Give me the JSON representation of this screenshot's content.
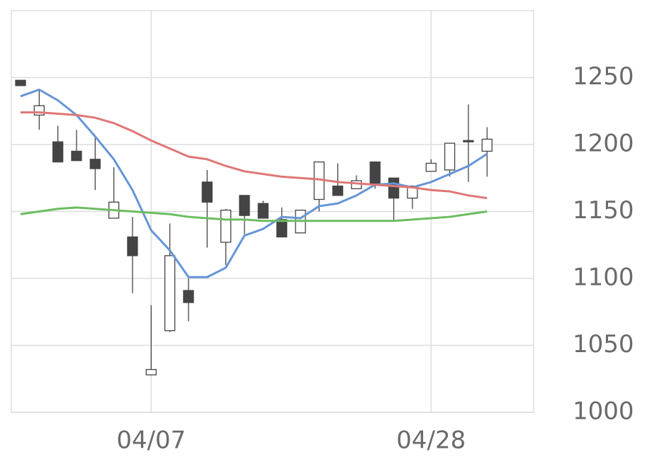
{
  "chart_data": {
    "type": "candlestick",
    "categories": [
      null,
      null,
      null,
      null,
      null,
      null,
      null,
      "04/07",
      null,
      null,
      null,
      null,
      null,
      null,
      null,
      null,
      null,
      null,
      null,
      null,
      null,
      null,
      "04/28",
      null,
      null,
      null
    ],
    "open": [
      1248,
      1222,
      1202,
      1195,
      1189,
      1145,
      1131,
      1028,
      1061,
      1091,
      1172,
      1127,
      1162,
      1156,
      1144,
      1134,
      1159,
      1169,
      1167,
      1187,
      1175,
      1160,
      1180,
      1181,
      1203,
      1195
    ],
    "high": [
      1248,
      1241,
      1214,
      1211,
      1206,
      1183,
      1146,
      1080,
      1141,
      1100,
      1181,
      1152,
      1162,
      1158,
      1153,
      1151,
      1187,
      1186,
      1177,
      1187,
      1175,
      1169,
      1189,
      1201,
      1230,
      1213
    ],
    "low": [
      1244,
      1211,
      1187,
      1188,
      1166,
      1145,
      1089,
      1028,
      1060,
      1068,
      1123,
      1110,
      1133,
      1145,
      1131,
      1134,
      1150,
      1162,
      1167,
      1167,
      1143,
      1152,
      1180,
      1176,
      1172,
      1176
    ],
    "close": [
      1244,
      1229,
      1187,
      1188,
      1182,
      1157,
      1117,
      1032,
      1117,
      1082,
      1157,
      1151,
      1147,
      1145,
      1131,
      1151,
      1187,
      1162,
      1173,
      1171,
      1160,
      1169,
      1186,
      1201,
      1202,
      1204
    ],
    "up_color": "#ffffff",
    "down_color": "#444444",
    "wick_color": "#444444",
    "series": [
      {
        "color": "#6595d6",
        "values": [
          1236,
          1241,
          1233,
          1222,
          1206,
          1189,
          1166,
          1136,
          1121,
          1101,
          1101,
          1108,
          1132,
          1137,
          1146,
          1145,
          1154,
          1156,
          1162,
          1170,
          1171,
          1168,
          1172,
          1178,
          1184,
          1193
        ]
      },
      {
        "color": "#e07676",
        "values": [
          1224,
          1224,
          1223,
          1222,
          1220,
          1216,
          1210,
          1203,
          1197,
          1191,
          1189,
          1184,
          1180,
          1178,
          1176,
          1175,
          1174,
          1172,
          1171,
          1170,
          1169,
          1168,
          1166,
          1165,
          1162,
          1160
        ]
      },
      {
        "color": "#6cbd62",
        "values": [
          1148,
          1150,
          1152,
          1153,
          1152,
          1151,
          1150,
          1149,
          1148,
          1146,
          1145,
          1144,
          1144,
          1143,
          1143,
          1143,
          1143,
          1143,
          1143,
          1143,
          1143,
          1144,
          1145,
          1146,
          1148,
          1150
        ]
      }
    ],
    "ylim": [
      1000,
      1300
    ],
    "yticks": [
      1000,
      1050,
      1100,
      1150,
      1200,
      1250
    ],
    "grid": true
  }
}
